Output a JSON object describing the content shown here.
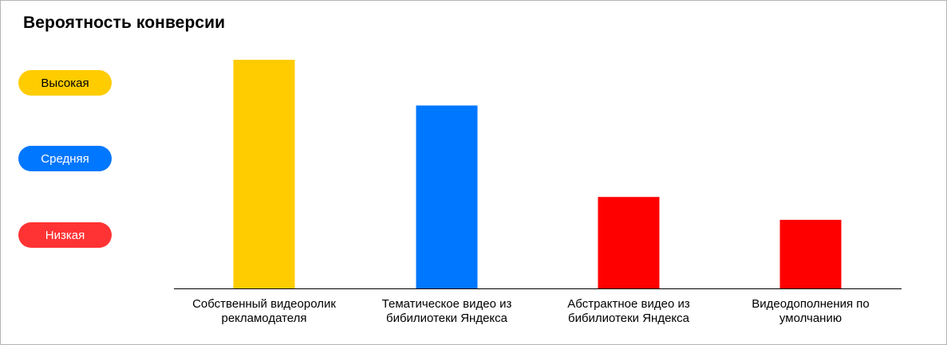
{
  "title": "Вероятность конверсии",
  "legend": [
    {
      "label": "Высокая",
      "color": "#FFCC00",
      "text_color": "#000000"
    },
    {
      "label": "Средняя",
      "color": "#0077FF",
      "text_color": "#FFFFFF"
    },
    {
      "label": "Низкая",
      "color": "#FF3333",
      "text_color": "#FFFFFF"
    }
  ],
  "chart_data": {
    "type": "bar",
    "title": "Вероятность конверсии",
    "categories": [
      "Собственный видеоролик рекламодателя",
      "Тематическое видео из бибилиотеки Яндекса",
      "Абстрактное видео из бибилиотеки Яндекса",
      "Видеодополнения по умолчанию"
    ],
    "values": [
      100,
      80,
      40,
      30
    ],
    "colors": [
      "#FFCC00",
      "#0077FF",
      "#FF0000",
      "#FF0000"
    ],
    "levels": [
      "Высокая",
      "Средняя",
      "Низкая",
      "Низкая"
    ],
    "ylim": [
      0,
      100
    ],
    "y_axis_visible": false,
    "grid": false
  }
}
